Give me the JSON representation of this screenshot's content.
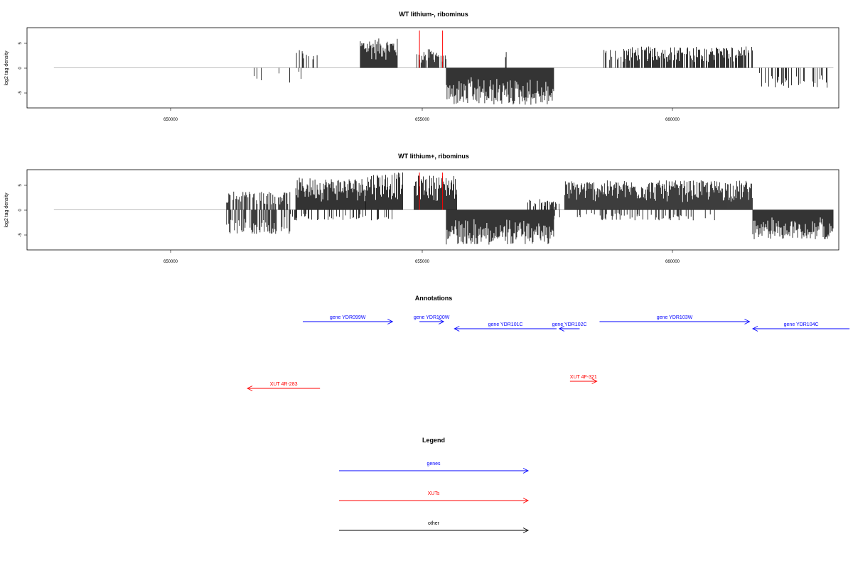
{
  "colors": {
    "gene": "#0000ff",
    "xut": "#ff0000",
    "other": "#000000",
    "baseline": "#aaaaaa",
    "marker": "#ff0000"
  },
  "chart_data": [
    {
      "type": "bar",
      "title": "WT lithium-, ribominus",
      "ylabel": "log2 tag density",
      "xlim": [
        647700,
        662800
      ],
      "ylim": [
        -7.5,
        7.5
      ],
      "xticks": [
        650000,
        655000,
        660000
      ],
      "yticks": [
        5,
        0,
        -5
      ],
      "grid": false,
      "baseline_x": [
        648200,
        662700
      ],
      "markers_x": [
        655000,
        655430
      ],
      "plus_strand_regions": [
        {
          "x": [
            652700,
            653100
          ],
          "y_max": 3.5,
          "density": 0.35
        },
        {
          "x": [
            653900,
            654600
          ],
          "y_max": 5.5,
          "density": 1.0
        },
        {
          "x": [
            654950,
            655500
          ],
          "y_max": 3.5,
          "density": 0.8
        },
        {
          "x": [
            656600,
            656620
          ],
          "y_max": 3.5,
          "density": 1.0
        },
        {
          "x": [
            658300,
            658800
          ],
          "y_max": 3.5,
          "density": 0.3
        },
        {
          "x": [
            658800,
            661200
          ],
          "y_max": 4.0,
          "density": 0.8
        }
      ],
      "minus_strand_regions": [
        {
          "x": [
            651500,
            652900
          ],
          "y_max": 2.8,
          "density": 0.1
        },
        {
          "x": [
            655500,
            657500
          ],
          "y_max": 7.0,
          "density": 1.0
        },
        {
          "x": [
            661300,
            662600
          ],
          "y_max": 3.8,
          "density": 0.3
        }
      ]
    },
    {
      "type": "bar",
      "title": "WT lithium+, ribominus",
      "ylabel": "log2 tag density",
      "xlim": [
        647700,
        662800
      ],
      "ylim": [
        -7.5,
        7.5
      ],
      "xticks": [
        650000,
        655000,
        660000
      ],
      "yticks": [
        5,
        0,
        -5
      ],
      "grid": false,
      "baseline_x": [
        648200,
        662700
      ],
      "markers_x": [
        655000,
        655430
      ],
      "plus_strand_regions": [
        {
          "x": [
            651400,
            652600
          ],
          "y_max": 3.5,
          "density": 0.6
        },
        {
          "x": [
            652700,
            654000
          ],
          "y_max": 6.0,
          "density": 1.0
        },
        {
          "x": [
            654000,
            654700
          ],
          "y_max": 7.0,
          "density": 1.0
        },
        {
          "x": [
            654900,
            655700
          ],
          "y_max": 6.5,
          "density": 1.0
        },
        {
          "x": [
            657000,
            657600
          ],
          "y_max": 2.0,
          "density": 0.5
        },
        {
          "x": [
            657700,
            661200
          ],
          "y_max": 5.5,
          "density": 1.0
        }
      ],
      "minus_strand_regions": [
        {
          "x": [
            651400,
            652600
          ],
          "y_max": 4.5,
          "density": 0.6
        },
        {
          "x": [
            652600,
            654500
          ],
          "y_max": 2.0,
          "density": 0.3
        },
        {
          "x": [
            655500,
            657500
          ],
          "y_max": 6.5,
          "density": 1.0
        },
        {
          "x": [
            657500,
            660500
          ],
          "y_max": 2.0,
          "density": 0.25
        },
        {
          "x": [
            661200,
            662700
          ],
          "y_max": 5.5,
          "density": 1.0
        }
      ]
    }
  ],
  "annotations": {
    "title": "Annotations",
    "features": [
      {
        "label": "gene YDR099W",
        "type": "gene",
        "strand": "+",
        "start": 652830,
        "end": 654500,
        "row": 1
      },
      {
        "label": "gene YDR100W",
        "type": "gene",
        "strand": "+",
        "start": 655000,
        "end": 655450,
        "row": 1
      },
      {
        "label": "gene YDR101C",
        "type": "gene",
        "strand": "-",
        "start": 655650,
        "end": 657550,
        "row": 2
      },
      {
        "label": "gene YDR102C",
        "type": "gene",
        "strand": "-",
        "start": 657600,
        "end": 657980,
        "row": 2
      },
      {
        "label": "gene YDR103W",
        "type": "gene",
        "strand": "+",
        "start": 658350,
        "end": 661140,
        "row": 1
      },
      {
        "label": "gene YDR104C",
        "type": "gene",
        "strand": "-",
        "start": 661200,
        "end": 663000,
        "row": 2
      },
      {
        "label": "XUT 4F-321",
        "type": "xut",
        "strand": "+",
        "start": 657800,
        "end": 658300,
        "row": 3
      },
      {
        "label": "XUT 4R-283",
        "type": "xut",
        "strand": "-",
        "start": 651800,
        "end": 653150,
        "row": 4
      }
    ]
  },
  "legend": {
    "title": "Legend",
    "items": [
      {
        "label": "genes",
        "type": "gene"
      },
      {
        "label": "XUTs",
        "type": "xut"
      },
      {
        "label": "other",
        "type": "other"
      }
    ]
  }
}
